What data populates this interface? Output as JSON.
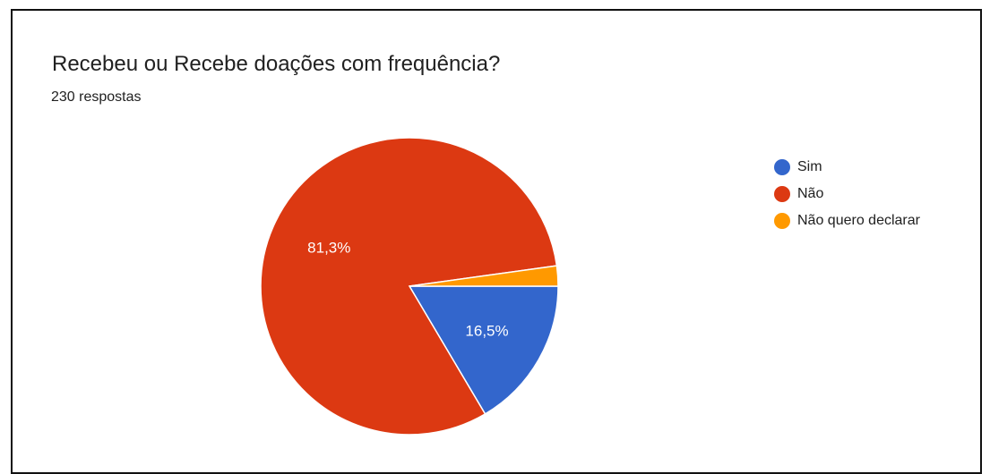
{
  "header": {
    "title": "Recebeu ou Recebe doações com frequência?",
    "responses": "230 respostas"
  },
  "chart_data": {
    "type": "pie",
    "categories": [
      "Sim",
      "Não",
      "Não quero declarar"
    ],
    "values": [
      16.5,
      81.3,
      2.2
    ],
    "labels": [
      "16,5%",
      "81,3%",
      ""
    ],
    "colors": [
      "#3366cc",
      "#dc3912",
      "#ff9900"
    ],
    "legend_position": "right",
    "start_angle": "3 o'clock",
    "direction": "clockwise"
  }
}
